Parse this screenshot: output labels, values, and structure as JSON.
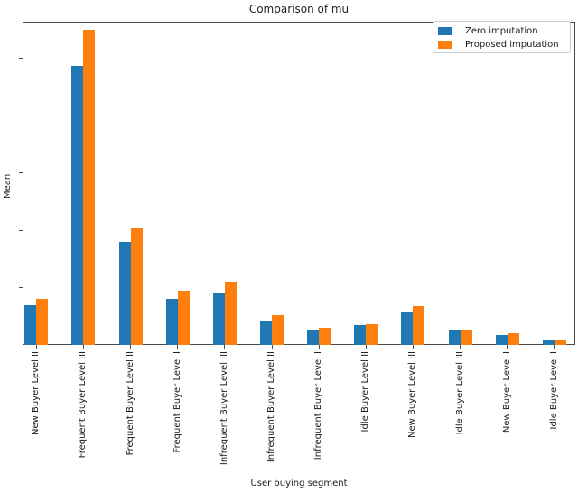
{
  "title": "Comparison of mu",
  "chart_data": {
    "type": "bar",
    "title": "Comparison of mu",
    "xlabel": "User buying segment",
    "ylabel": "Mean",
    "categories": [
      "New Buyer Level II",
      "Frequent Buyer Level III",
      "Frequent Buyer Level II",
      "Frequent Buyer Level I",
      "Infrequent Buyer Level III",
      "Infrequent Buyer Level II",
      "Infrequent Buyer Level I",
      "Idle Buyer Level II",
      "New Buyer Level III",
      "Idle Buyer Level III",
      "New Buyer Level I",
      "Idle Buyer Level I"
    ],
    "series": [
      {
        "name": "Zero imputation",
        "color": "#1f77b4",
        "values": [
          0.7,
          4.87,
          1.8,
          0.81,
          0.91,
          0.43,
          0.26,
          0.35,
          0.59,
          0.25,
          0.18,
          0.1
        ]
      },
      {
        "name": "Proposed imputation",
        "color": "#ff7f0e",
        "values": [
          0.81,
          5.5,
          2.04,
          0.94,
          1.11,
          0.52,
          0.3,
          0.37,
          0.68,
          0.27,
          0.21,
          0.09
        ]
      }
    ],
    "ylim": [
      0,
      5.64
    ],
    "y_ticks": [
      1,
      2,
      3,
      4,
      5
    ],
    "y_tick_labels_shown": false,
    "x_tick_rotation_deg": 90,
    "legend_position": "upper right",
    "grid": false
  }
}
